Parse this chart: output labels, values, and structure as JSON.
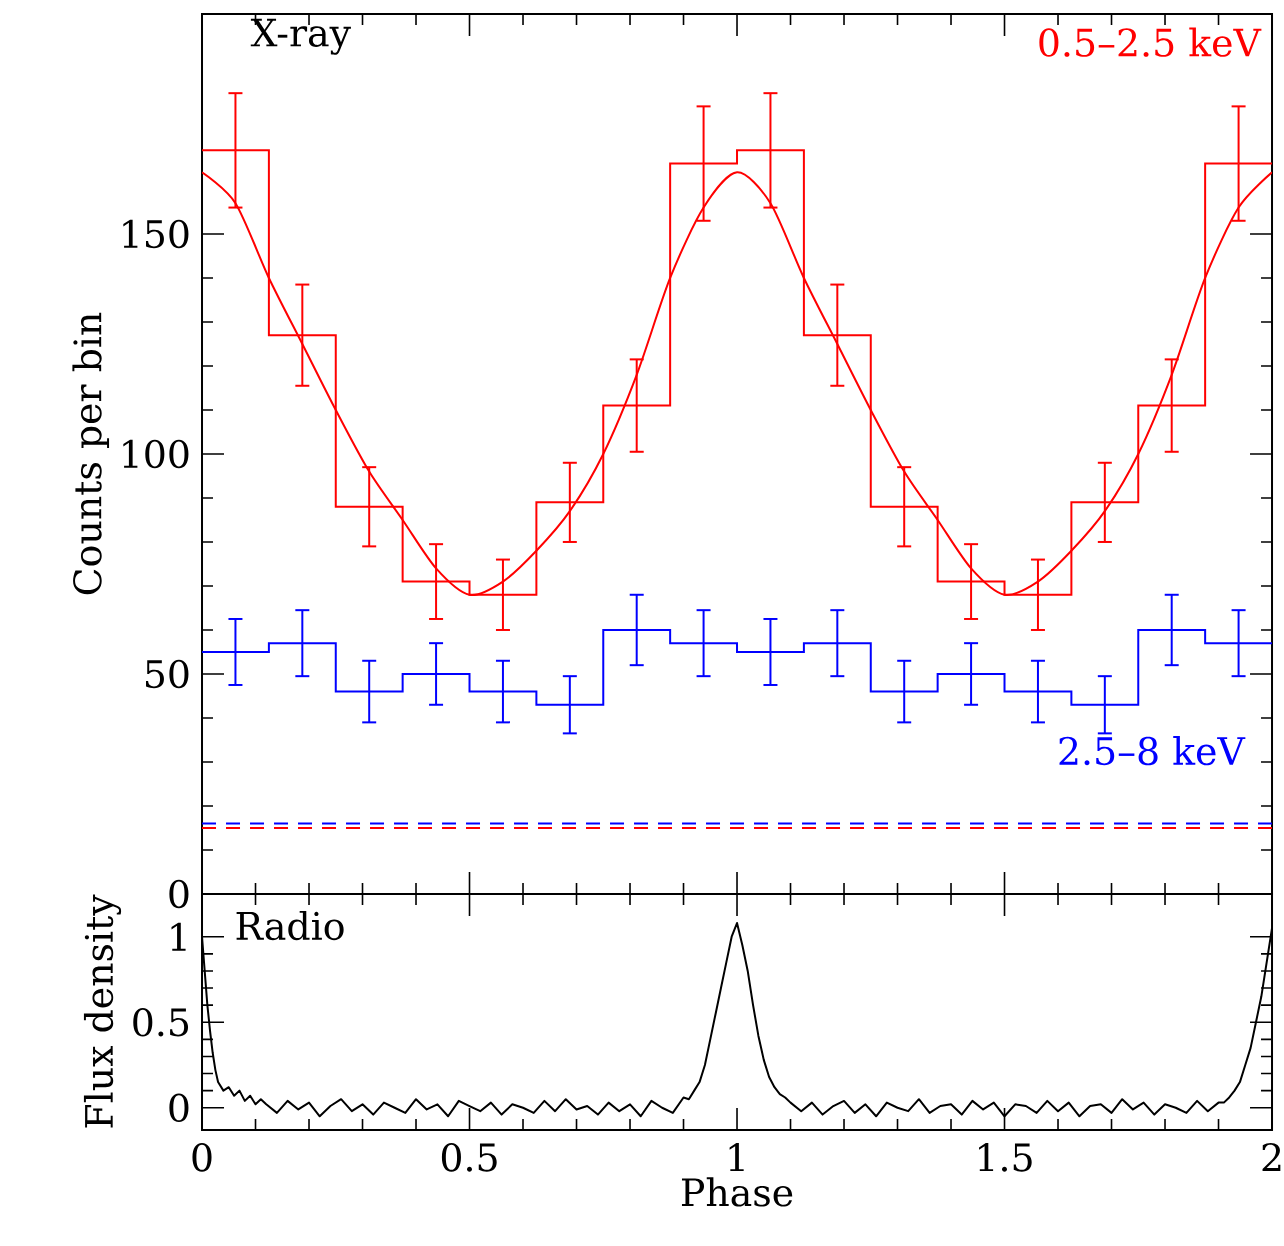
{
  "chart_data": [
    {
      "type": "step",
      "x": [
        0.0625,
        0.1875,
        0.3125,
        0.4375,
        0.5625,
        0.6875,
        0.8125,
        0.9375,
        1.0625,
        1.1875,
        1.3125,
        1.4375,
        1.5625,
        1.6875,
        1.8125,
        1.9375
      ],
      "series": [
        {
          "name": "0.5–2.5 keV",
          "color": "#ff0000",
          "values": [
            169,
            127,
            88,
            71,
            68,
            89,
            111,
            166,
            169,
            127,
            88,
            71,
            68,
            89,
            111,
            166
          ],
          "errors": [
            13,
            11.5,
            9,
            8.5,
            8,
            9,
            10.5,
            13,
            13,
            11.5,
            9,
            8.5,
            8,
            9,
            10.5,
            13
          ]
        },
        {
          "name": "2.5–8 keV",
          "color": "#0000ff",
          "values": [
            55,
            57,
            46,
            50,
            46,
            43,
            60,
            57,
            55,
            57,
            46,
            50,
            46,
            43,
            60,
            57
          ],
          "errors": [
            7.5,
            7.5,
            7,
            7,
            7,
            6.5,
            8,
            7.5,
            7.5,
            7.5,
            7,
            7,
            7,
            6.5,
            8,
            7.5
          ]
        },
        {
          "type": "line",
          "color": "#ff0000",
          "x": [
            0,
            0.0625,
            0.125,
            0.1875,
            0.25,
            0.3125,
            0.375,
            0.4375,
            0.5,
            0.5625,
            0.625,
            0.6875,
            0.75,
            0.8125,
            0.875,
            0.9375,
            1,
            1.0625,
            1.125,
            1.1875,
            1.25,
            1.3125,
            1.375,
            1.4375,
            1.5,
            1.5625,
            1.625,
            1.6875,
            1.75,
            1.8125,
            1.875,
            1.9375,
            2
          ],
          "values": [
            164,
            157,
            140,
            125,
            110,
            96,
            85,
            74,
            68,
            71,
            78,
            87,
            100,
            118,
            140,
            156,
            164,
            157,
            140,
            125,
            110,
            96,
            85,
            74,
            68,
            71,
            78,
            87,
            100,
            118,
            140,
            156,
            164
          ]
        }
      ],
      "ylabel": "Counts per bin",
      "annotations": [
        "X-ray"
      ],
      "xlim": [
        0,
        2
      ],
      "xticks": [
        0,
        0.5,
        1,
        1.5,
        2
      ],
      "ylim": [
        0,
        200
      ],
      "yticks": [
        0,
        50,
        100,
        150
      ],
      "tick_labels": "y",
      "ref_lines": [
        {
          "axis": "y",
          "value": 16,
          "color": "#0000ff",
          "line_style": "dashed"
        },
        {
          "axis": "y",
          "value": 15,
          "color": "#ff0000",
          "line_style": "dashed"
        }
      ]
    },
    {
      "type": "line",
      "xlabel": "Phase",
      "ylabel": "Flux density",
      "annotations": [
        "Radio"
      ],
      "xlim": [
        0,
        2
      ],
      "xticks": [
        0,
        0.5,
        1,
        1.5,
        2
      ],
      "ylim": [
        -0.13,
        1.25
      ],
      "yticks": [
        0,
        0.5,
        1
      ],
      "x": [
        0,
        0.005,
        0.01,
        0.015,
        0.02,
        0.025,
        0.03,
        0.04,
        0.05,
        0.06,
        0.07,
        0.08,
        0.09,
        0.1,
        0.11,
        0.12,
        0.14,
        0.16,
        0.18,
        0.2,
        0.22,
        0.24,
        0.26,
        0.28,
        0.3,
        0.32,
        0.34,
        0.36,
        0.38,
        0.4,
        0.42,
        0.44,
        0.46,
        0.48,
        0.5,
        0.52,
        0.54,
        0.56,
        0.58,
        0.6,
        0.62,
        0.64,
        0.66,
        0.68,
        0.7,
        0.72,
        0.74,
        0.76,
        0.78,
        0.8,
        0.82,
        0.84,
        0.86,
        0.88,
        0.9,
        0.91,
        0.92,
        0.93,
        0.94,
        0.95,
        0.96,
        0.97,
        0.98,
        0.99,
        1.0,
        1.01,
        1.02,
        1.03,
        1.04,
        1.05,
        1.06,
        1.07,
        1.08,
        1.09,
        1.1,
        1.12,
        1.14,
        1.16,
        1.18,
        1.2,
        1.22,
        1.24,
        1.26,
        1.28,
        1.3,
        1.32,
        1.34,
        1.36,
        1.38,
        1.4,
        1.42,
        1.44,
        1.46,
        1.48,
        1.5,
        1.52,
        1.54,
        1.56,
        1.58,
        1.6,
        1.62,
        1.64,
        1.66,
        1.68,
        1.7,
        1.72,
        1.74,
        1.76,
        1.78,
        1.8,
        1.82,
        1.84,
        1.86,
        1.88,
        1.9,
        1.91,
        1.92,
        1.93,
        1.94,
        1.95,
        1.96,
        1.97,
        1.98,
        1.99,
        2.0
      ],
      "series": [
        {
          "color": "#000000",
          "values": [
            1.0,
            0.8,
            0.6,
            0.45,
            0.32,
            0.22,
            0.15,
            0.1,
            0.12,
            0.07,
            0.1,
            0.04,
            0.07,
            0.02,
            0.05,
            0.02,
            -0.03,
            0.04,
            -0.01,
            0.03,
            -0.05,
            0.01,
            0.05,
            -0.02,
            0.02,
            -0.04,
            0.03,
            0,
            -0.03,
            0.05,
            -0.01,
            0.02,
            -0.05,
            0.04,
            0.01,
            -0.02,
            0.03,
            -0.04,
            0.02,
            0,
            -0.03,
            0.04,
            -0.02,
            0.05,
            -0.01,
            0.01,
            -0.04,
            0.03,
            -0.02,
            0.02,
            -0.05,
            0.04,
            0,
            -0.03,
            0.06,
            0.05,
            0.1,
            0.15,
            0.25,
            0.4,
            0.55,
            0.7,
            0.85,
            1.0,
            1.08,
            0.95,
            0.8,
            0.6,
            0.42,
            0.28,
            0.18,
            0.12,
            0.08,
            0.06,
            0.03,
            -0.02,
            0.03,
            -0.04,
            0.01,
            0.04,
            -0.03,
            0.02,
            -0.05,
            0.03,
            0,
            -0.02,
            0.05,
            -0.03,
            0.01,
            0.02,
            -0.04,
            0.04,
            -0.01,
            0.03,
            -0.05,
            0.02,
            0.01,
            -0.03,
            0.04,
            -0.02,
            0.03,
            -0.05,
            0.01,
            0.02,
            -0.03,
            0.05,
            -0.01,
            0.03,
            -0.04,
            0.02,
            0,
            -0.03,
            0.04,
            -0.02,
            0.03,
            0.03,
            0.06,
            0.1,
            0.15,
            0.25,
            0.35,
            0.5,
            0.65,
            0.85,
            1.05
          ]
        }
      ]
    }
  ]
}
